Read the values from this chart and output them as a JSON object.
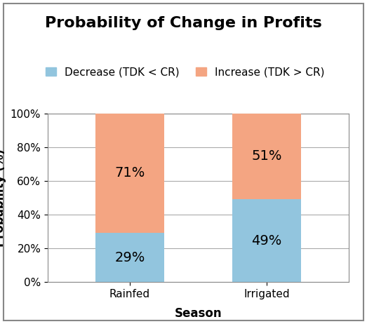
{
  "title": "Probability of Change in Profits",
  "xlabel": "Season",
  "ylabel": "Probability (%)",
  "categories": [
    "Rainfed",
    "Irrigated"
  ],
  "decrease_values": [
    29,
    49
  ],
  "increase_values": [
    71,
    51
  ],
  "decrease_color": "#92C5DE",
  "increase_color": "#F4A582",
  "decrease_label": "Decrease (TDK < CR)",
  "increase_label": "Increase (TDK > CR)",
  "decrease_text": [
    "29%",
    "49%"
  ],
  "increase_text": [
    "71%",
    "51%"
  ],
  "ylim": [
    0,
    100
  ],
  "yticks": [
    0,
    20,
    40,
    60,
    80,
    100
  ],
  "ytick_labels": [
    "0%",
    "20%",
    "40%",
    "60%",
    "80%",
    "100%"
  ],
  "fig_background_color": "#ffffff",
  "plot_background_color": "#ffffff",
  "bar_width": 0.5,
  "title_fontsize": 16,
  "axis_label_fontsize": 12,
  "tick_fontsize": 11,
  "legend_fontsize": 11,
  "annotation_fontsize": 14
}
